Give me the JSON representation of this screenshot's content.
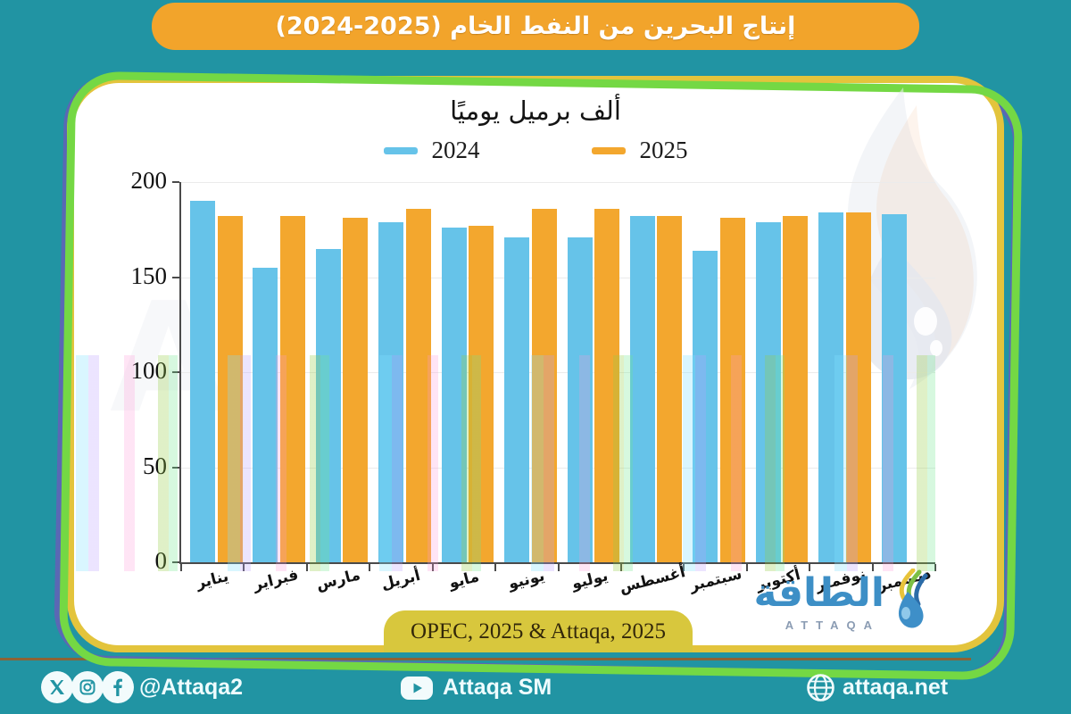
{
  "banner": {
    "title": "إنتاج البحرين من النفط الخام (2025-2024)"
  },
  "chart_data": {
    "type": "bar",
    "title": "ألف برميل يوميًا",
    "categories": [
      "يناير",
      "فبراير",
      "مارس",
      "أبريل",
      "مايو",
      "يونيو",
      "يوليو",
      "أغسطس",
      "سبتمبر",
      "أكتوبر",
      "نوفمبر",
      "ديسمبر"
    ],
    "series": [
      {
        "name": "2024",
        "color": "#66c3e9",
        "values": [
          190,
          155,
          165,
          179,
          176,
          171,
          171,
          182,
          164,
          179,
          184,
          183
        ]
      },
      {
        "name": "2025",
        "color": "#f3a72e",
        "values": [
          182,
          182,
          181,
          186,
          177,
          186,
          186,
          182,
          181,
          182,
          184,
          null
        ]
      }
    ],
    "ylabel": "",
    "xlabel": "",
    "ylim": [
      0,
      200
    ],
    "yticks": [
      0,
      50,
      100,
      150,
      200
    ],
    "grid": true,
    "legend_position": "top"
  },
  "source": {
    "label": "OPEC, 2025 & Attaqa, 2025"
  },
  "logo": {
    "arabic": "الطاقة",
    "latin": "ATTAQA"
  },
  "footer": {
    "handle": "@Attaqa2",
    "youtube": "Attaqa SM",
    "website": "attaqa.net"
  },
  "colors": {
    "background_teal": "#2194a3",
    "banner_orange": "#f2a42b",
    "card_border_yellow": "#e3c43c",
    "bar_2024_blue": "#66c3e9",
    "bar_2025_orange": "#f3a72e",
    "source_pill_yellow": "#d8c73d",
    "logo_blue": "#3d8fc6",
    "accent_green": "#74d844",
    "accent_purple": "#5a68b4"
  }
}
